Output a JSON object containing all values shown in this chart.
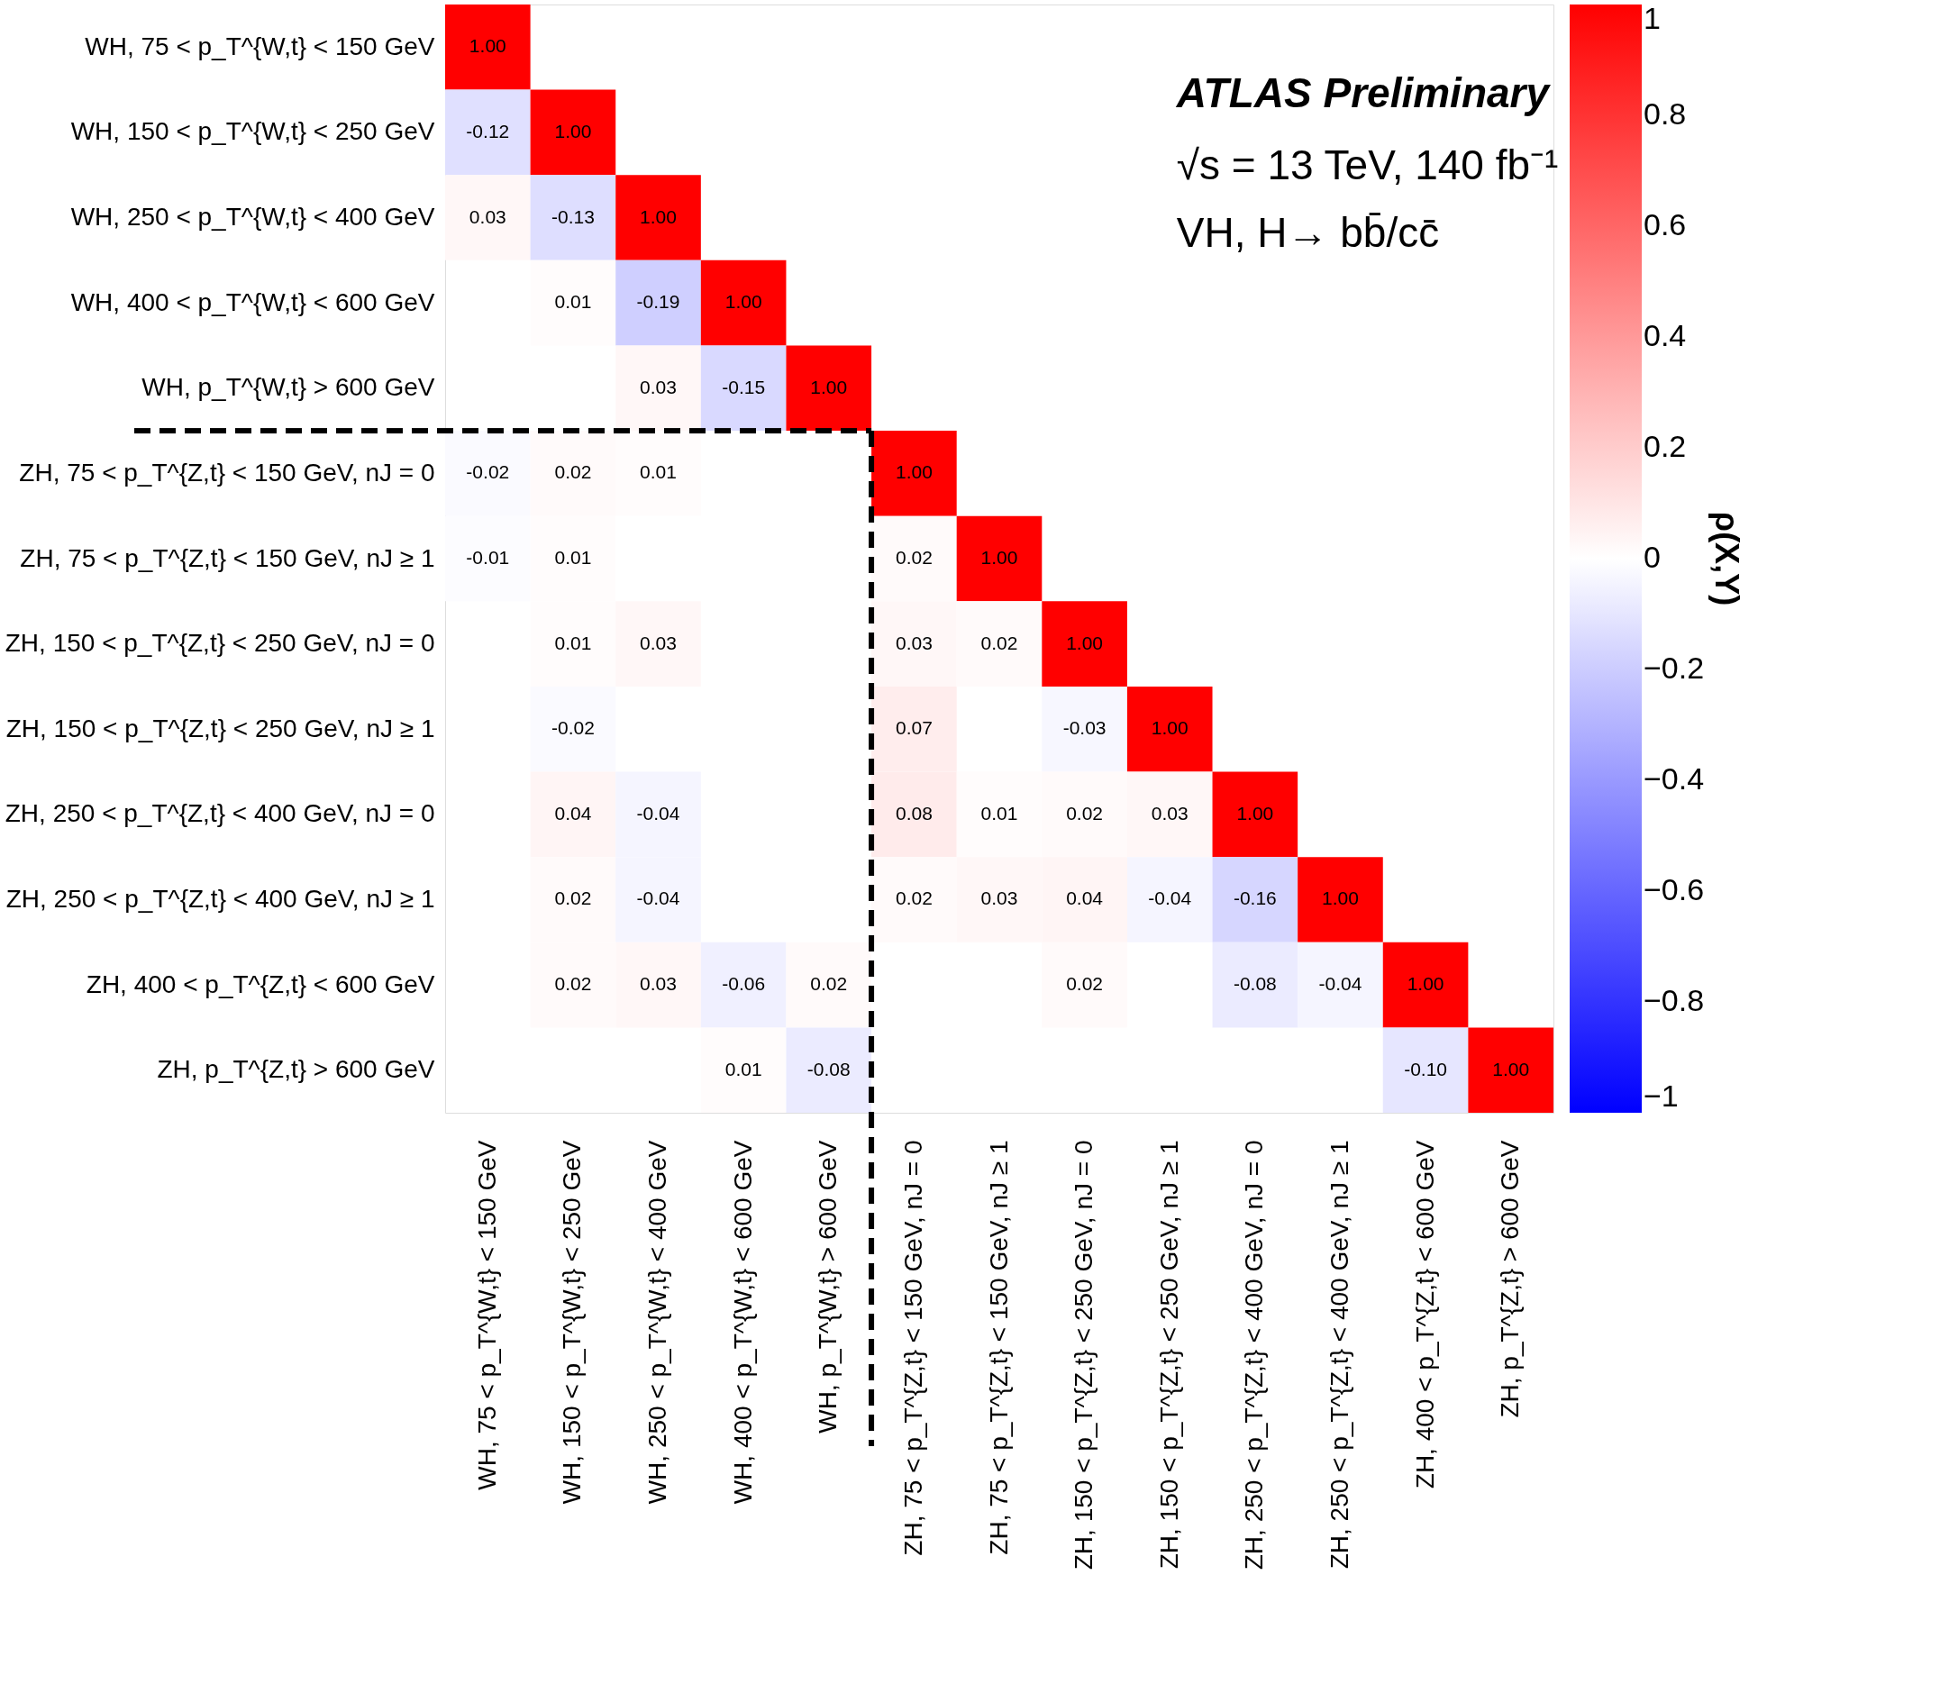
{
  "chart_data": {
    "type": "heatmap",
    "categories": [
      "WH, 75 < p_T^{W,t} < 150 GeV",
      "WH, 150 < p_T^{W,t} < 250 GeV",
      "WH, 250 < p_T^{W,t} < 400 GeV",
      "WH, 400 < p_T^{W,t} < 600 GeV",
      "WH, p_T^{W,t} > 600 GeV",
      "ZH, 75 < p_T^{Z,t} < 150 GeV, nJ = 0",
      "ZH, 75 < p_T^{Z,t} < 150 GeV, nJ ≥ 1",
      "ZH, 150 < p_T^{Z,t} < 250 GeV, nJ = 0",
      "ZH, 150 < p_T^{Z,t} < 250 GeV, nJ ≥ 1",
      "ZH, 250 < p_T^{Z,t} < 400 GeV, nJ = 0",
      "ZH, 250 < p_T^{Z,t} < 400 GeV, nJ ≥ 1",
      "ZH, 400 < p_T^{Z,t} < 600 GeV",
      "ZH, p_T^{Z,t} > 600 GeV"
    ],
    "y_categories": [
      "WH, 75 < p_T^{W,t} < 150 GeV",
      "WH, 150 < p_T^{W,t} < 250 GeV",
      "WH, 250 < p_T^{W,t} < 400 GeV",
      "WH, 400 < p_T^{W,t} < 600 GeV",
      "WH, p_T^{W,t} > 600 GeV",
      "ZH, 75 < p_T^{Z,t} < 150 GeV, nJ = 0",
      "ZH, 75 < p_T^{Z,t} < 150 GeV, nJ ≥ 1",
      "ZH, 150 < p_T^{Z,t} < 250 GeV, nJ = 0",
      "ZH, 150 < p_T^{Z,t} < 250 GeV, nJ ≥ 1",
      "ZH, 250 < p_T^{Z,t} < 400 GeV, nJ = 0",
      "ZH, 250 < p_T^{Z,t} < 400 GeV, nJ ≥ 1",
      "ZH, 400 < p_T^{Z,t} < 600 GeV",
      "ZH, p_T^{Z,t} > 600 GeV"
    ],
    "cells": [
      [
        1.0,
        null,
        null,
        null,
        null,
        null,
        null,
        null,
        null,
        null,
        null,
        null,
        null
      ],
      [
        -0.12,
        1.0,
        null,
        null,
        null,
        null,
        null,
        null,
        null,
        null,
        null,
        null,
        null
      ],
      [
        0.03,
        -0.13,
        1.0,
        null,
        null,
        null,
        null,
        null,
        null,
        null,
        null,
        null,
        null
      ],
      [
        null,
        0.01,
        -0.19,
        1.0,
        null,
        null,
        null,
        null,
        null,
        null,
        null,
        null,
        null
      ],
      [
        null,
        null,
        0.03,
        -0.15,
        1.0,
        null,
        null,
        null,
        null,
        null,
        null,
        null,
        null
      ],
      [
        -0.02,
        0.02,
        0.01,
        null,
        null,
        1.0,
        null,
        null,
        null,
        null,
        null,
        null,
        null
      ],
      [
        -0.01,
        0.01,
        null,
        null,
        null,
        0.02,
        1.0,
        null,
        null,
        null,
        null,
        null,
        null
      ],
      [
        null,
        0.01,
        0.03,
        null,
        null,
        0.03,
        0.02,
        1.0,
        null,
        null,
        null,
        null,
        null
      ],
      [
        null,
        -0.02,
        null,
        null,
        null,
        0.07,
        null,
        -0.03,
        1.0,
        null,
        null,
        null,
        null
      ],
      [
        null,
        0.04,
        -0.04,
        null,
        null,
        0.08,
        0.01,
        0.02,
        0.03,
        1.0,
        null,
        null,
        null
      ],
      [
        null,
        0.02,
        -0.04,
        null,
        null,
        0.02,
        0.03,
        0.04,
        -0.04,
        -0.16,
        1.0,
        null,
        null
      ],
      [
        null,
        0.02,
        0.03,
        -0.06,
        0.02,
        null,
        null,
        0.02,
        null,
        -0.08,
        -0.04,
        1.0,
        null
      ],
      [
        null,
        null,
        null,
        0.01,
        -0.08,
        null,
        null,
        null,
        null,
        null,
        null,
        -0.1,
        1.0
      ]
    ],
    "cell_labels": [
      [
        "1.00",
        null,
        null,
        null,
        null,
        null,
        null,
        null,
        null,
        null,
        null,
        null,
        null
      ],
      [
        "-0.12",
        "1.00",
        null,
        null,
        null,
        null,
        null,
        null,
        null,
        null,
        null,
        null,
        null
      ],
      [
        "0.03",
        "-0.13",
        "1.00",
        null,
        null,
        null,
        null,
        null,
        null,
        null,
        null,
        null,
        null
      ],
      [
        null,
        "0.01",
        "-0.19",
        "1.00",
        null,
        null,
        null,
        null,
        null,
        null,
        null,
        null,
        null
      ],
      [
        null,
        null,
        "0.03",
        "-0.15",
        "1.00",
        null,
        null,
        null,
        null,
        null,
        null,
        null,
        null
      ],
      [
        "-0.02",
        "0.02",
        "0.01",
        null,
        null,
        "1.00",
        null,
        null,
        null,
        null,
        null,
        null,
        null
      ],
      [
        "-0.01",
        "0.01",
        null,
        null,
        null,
        "0.02",
        "1.00",
        null,
        null,
        null,
        null,
        null,
        null
      ],
      [
        null,
        "0.01",
        "0.03",
        null,
        null,
        "0.03",
        "0.02",
        "1.00",
        null,
        null,
        null,
        null,
        null
      ],
      [
        null,
        "-0.02",
        null,
        null,
        null,
        "0.07",
        null,
        "-0.03",
        "1.00",
        null,
        null,
        null,
        null
      ],
      [
        null,
        "0.04",
        "-0.04",
        null,
        null,
        "0.08",
        "0.01",
        "0.02",
        "0.03",
        "1.00",
        null,
        null,
        null
      ],
      [
        null,
        "0.02",
        "-0.04",
        null,
        null,
        "0.02",
        "0.03",
        "0.04",
        "-0.04",
        "-0.16",
        "1.00",
        null,
        null
      ],
      [
        null,
        "0.02",
        "0.03",
        "-0.06",
        "0.02",
        null,
        null,
        "0.02",
        null,
        "-0.08",
        "-0.04",
        "1.00",
        null
      ],
      [
        null,
        null,
        null,
        "0.01",
        "-0.08",
        null,
        null,
        null,
        null,
        null,
        null,
        "-0.10",
        "1.00"
      ]
    ],
    "clim": [
      -1,
      1
    ],
    "cticks": [
      {
        "value": -1,
        "label": "−1"
      },
      {
        "value": -0.8,
        "label": "−0.8"
      },
      {
        "value": -0.6,
        "label": "−0.6"
      },
      {
        "value": -0.4,
        "label": "−0.4"
      },
      {
        "value": -0.2,
        "label": "−0.2"
      },
      0,
      0.2,
      0.4,
      0.6,
      0.8,
      1
    ],
    "clabel": "ρ(X,Y)",
    "annotations": [
      "ATLAS Preliminary",
      "√s = 13 TeV, 140 fb⁻¹",
      "VH, H→ bb̄/cc̄"
    ]
  }
}
